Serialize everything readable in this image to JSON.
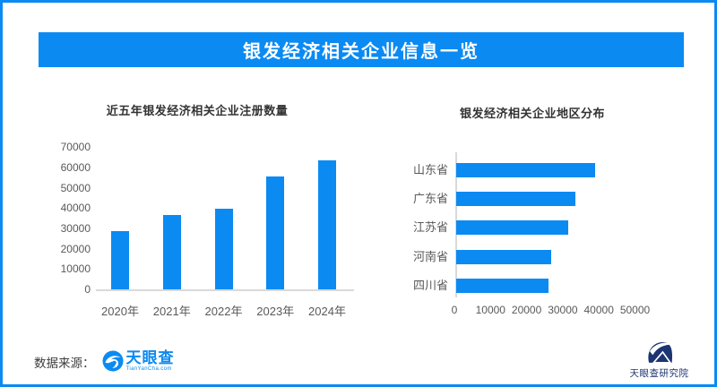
{
  "page": {
    "header": {
      "title": "银发经济相关企业信息一览"
    },
    "footer": {
      "source_label": "数据来源：",
      "tianyancha_name": "天眼查",
      "tianyancha_sub": "TianYanCha.com",
      "research_label": "天眼查研究院"
    },
    "colors": {
      "accent": "#0b8af2",
      "bar": "#0b8af2",
      "axis": "#d9d9d9",
      "tick": "#595959",
      "title": "#333333",
      "navy": "#1c3472"
    }
  },
  "chart_data": [
    {
      "type": "bar",
      "orientation": "vertical",
      "title": "近五年银发经济相关企业注册数量",
      "categories": [
        "2020年",
        "2021年",
        "2022年",
        "2023年",
        "2024年"
      ],
      "values": [
        28500,
        36500,
        39500,
        55500,
        63500
      ],
      "xlabel": "",
      "ylabel": "",
      "ylim": [
        0,
        70000
      ],
      "ytick_step": 10000,
      "grid": false,
      "legend": false
    },
    {
      "type": "bar",
      "orientation": "horizontal",
      "title": "银发经济相关企业地区分布",
      "categories": [
        "山东省",
        "广东省",
        "江苏省",
        "河南省",
        "四川省"
      ],
      "values": [
        38500,
        33000,
        31000,
        26300,
        25500
      ],
      "xlabel": "",
      "ylabel": "",
      "xlim": [
        0,
        50000
      ],
      "xtick_step": 10000,
      "grid": false,
      "legend": false
    }
  ]
}
